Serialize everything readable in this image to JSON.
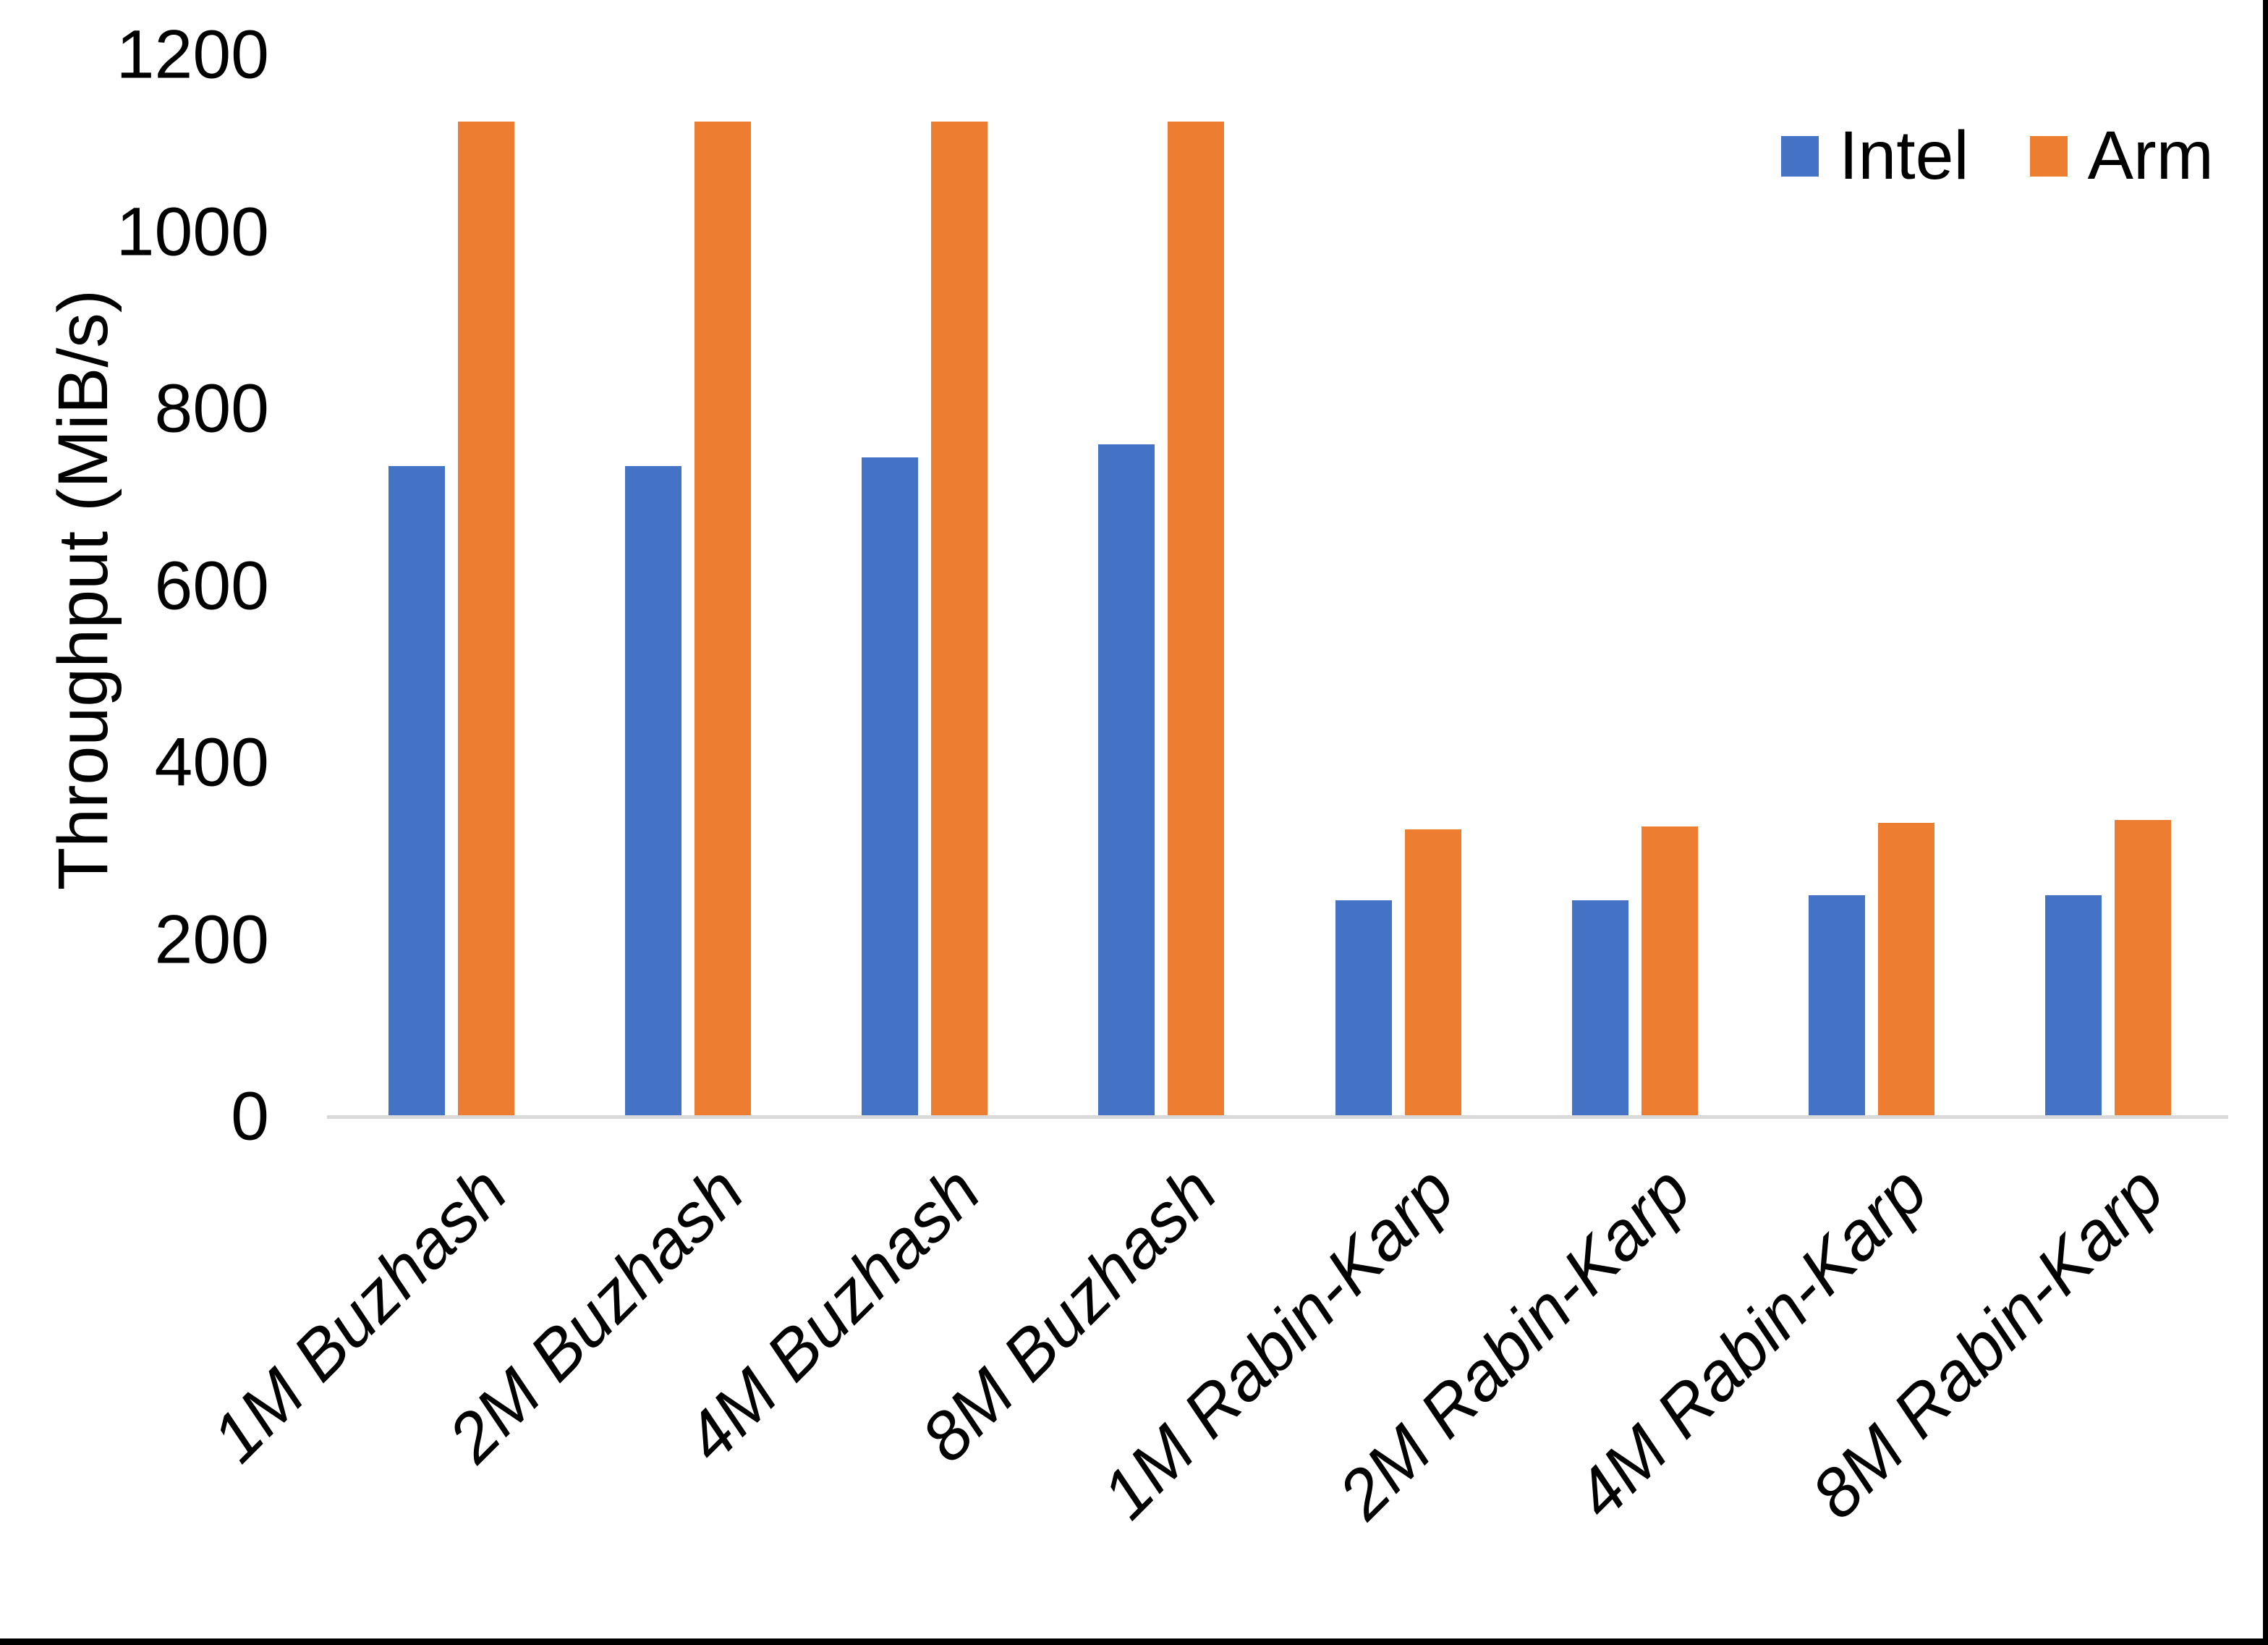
{
  "chart_data": {
    "type": "bar",
    "title": "",
    "ylabel": "Throughput (MiB/s)",
    "xlabel": "",
    "categories": [
      "1M Buzhash",
      "2M Buzhash",
      "4M Buzhash",
      "8M Buzhash",
      "1M Rabin-Karp",
      "2M Rabin-Karp",
      "4M Rabin-Karp",
      "8M Rabin-Karp"
    ],
    "series": [
      {
        "name": "Intel",
        "color": "#4472C4",
        "values": [
          735,
          735,
          745,
          760,
          245,
          245,
          250,
          250
        ]
      },
      {
        "name": "Arm",
        "color": "#ED7D31",
        "values": [
          1125,
          1125,
          1125,
          1125,
          325,
          328,
          332,
          335
        ]
      }
    ],
    "ylim": [
      0,
      1200
    ],
    "yticks": [
      0,
      200,
      400,
      600,
      800,
      1000,
      1200
    ],
    "grid": false,
    "legend_position": "top-right",
    "axis_line_color": "#D9D9D9",
    "text_color": "#000000"
  }
}
